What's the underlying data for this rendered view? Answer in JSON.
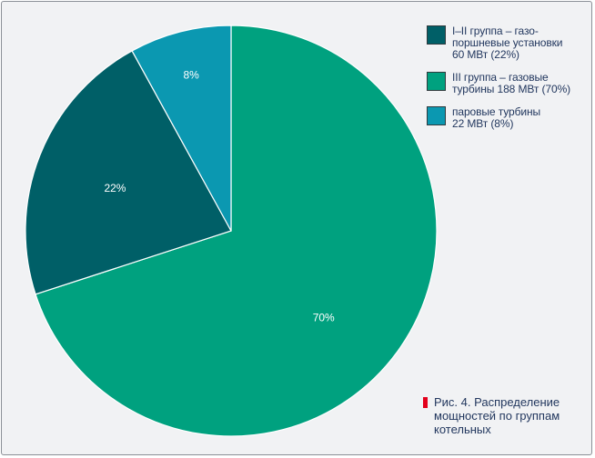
{
  "chart_data": {
    "type": "pie",
    "slices": [
      {
        "name": "III группа – газовые турбины 188 МВт (70%)",
        "value": 70,
        "label": "70%",
        "color": "#00a17f"
      },
      {
        "name": "I–II группа – газо-поршневые установки 60 МВт (22%)",
        "value": 22,
        "label": "22%",
        "color": "#005f67"
      },
      {
        "name": "паровые турбины 22 МВт (8%)",
        "value": 8,
        "label": "8%",
        "color": "#0b98b1"
      }
    ],
    "legend": [
      {
        "text": "I–II группа – газо-\nпоршневые установки\n60 МВт (22%)",
        "color": "#005f67"
      },
      {
        "text": "III группа – газовые\nтурбины 188 МВт (70%)",
        "color": "#00a17f"
      },
      {
        "text": "паровые турбины\n22 МВт (8%)",
        "color": "#0b98b1"
      }
    ],
    "title": "Рис. 4. Распределение\nмощностей по группам\nкотельных",
    "title_marker_color": "#e3001b"
  }
}
